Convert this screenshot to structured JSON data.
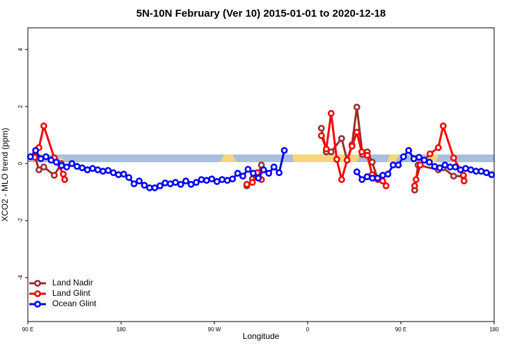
{
  "chart_data": {
    "type": "line",
    "title": "5N-10N February (Ver 10)   2015-01-01 to 2020-12-18",
    "x_label": "Longitude",
    "y_label": "XCO2 - MLO trend (ppm)",
    "xlim": [
      90,
      540
    ],
    "ylim": [
      -5.54,
      4.76
    ],
    "xticks": [
      {
        "value": 90,
        "label": "90 E"
      },
      180,
      {
        "value": 270,
        "label": "90 W"
      },
      {
        "value": 360,
        "label": "0"
      },
      {
        "value": 450,
        "label": "90 E"
      },
      {
        "value": 540,
        "label": "180"
      }
    ],
    "yticks": [
      -4,
      -2,
      0,
      2,
      4
    ],
    "legend": "bottom-left",
    "series": [
      {
        "name": "Land Nadir",
        "color": "#9b2d2d",
        "x": [
          96.7,
          100.7,
          105.4,
          115.5,
          122.3,
          210,
          301.3,
          306.7,
          312.8,
          315.4,
          345,
          373.3,
          378.0,
          382.7,
          392.8,
          398.1,
          402.8,
          407.5,
          412.9,
          417.6,
          422.3,
          427.7,
          445,
          463.3,
          466.6,
          486.1,
          490.8,
          500.9,
          510.3
        ],
        "values": [
          0.27,
          -0.22,
          -0.12,
          -0.41,
          0,
          null,
          -0.78,
          -0.54,
          -0.34,
          -0.05,
          null,
          1.24,
          0.41,
          0.41,
          0.88,
          0.12,
          0.66,
          1.98,
          0.32,
          0.41,
          0.05,
          -0.56,
          null,
          -0.93,
          -0.05,
          -0.22,
          -0.15,
          -0.44,
          -0.44
        ]
      },
      {
        "name": "Land Glint",
        "color": "#ff0000",
        "x": [
          96.7,
          100.7,
          105.4,
          115.5,
          124.2,
          125.6,
          210,
          301.3,
          306.7,
          311.4,
          315.4,
          345,
          373.3,
          378.0,
          382.7,
          388.1,
          392.8,
          398.1,
          402.8,
          407.5,
          412.2,
          417.6,
          422.3,
          427.7,
          432.4,
          435.7,
          450,
          463.3,
          464.6,
          468.7,
          478.1,
          486.1,
          490.8,
          500.9,
          510.3,
          511.0
        ],
        "values": [
          0.22,
          0.56,
          1.32,
          0.2,
          -0.37,
          -0.56,
          null,
          -0.73,
          -0.66,
          -0.32,
          -0.56,
          null,
          0.98,
          0.51,
          1.76,
          0.15,
          -0.56,
          0.12,
          0.61,
          1.1,
          0.41,
          0.29,
          -0.39,
          -0.56,
          -0.61,
          -0.78,
          null,
          -0.78,
          -0.56,
          -0.05,
          0.34,
          0.56,
          1.32,
          0.2,
          -0.41,
          -0.61
        ]
      },
      {
        "name": "Ocean Glint",
        "color": "#0000ff",
        "x": [
          92.5,
          97.5,
          102.5,
          107.5,
          112.5,
          117.5,
          122.5,
          127.5,
          132.5,
          137.5,
          142.5,
          147.5,
          152.5,
          157.5,
          162.5,
          167.5,
          172.5,
          177.5,
          182.5,
          187.5,
          192.5,
          197.5,
          202.5,
          207.5,
          212.5,
          217.5,
          222.5,
          227.5,
          232.5,
          237.5,
          242.5,
          247.5,
          252.5,
          257.5,
          262.5,
          267.5,
          272.5,
          277.5,
          282.5,
          287.5,
          292.5,
          297.5,
          302.5,
          307.5,
          312.5,
          317.5,
          322.5,
          327.5,
          332.5,
          337.5,
          400,
          407.5,
          412.5,
          417.5,
          422.5,
          427.5,
          432.5,
          437.5,
          442.5,
          447.5,
          452.5,
          457.5,
          462.5,
          467.5,
          472.5,
          477.5,
          482.5,
          487.5,
          492.5,
          497.5,
          502.5,
          507.5,
          512.5,
          517.5,
          522.5,
          527.5,
          532.5,
          537.5
        ],
        "values": [
          0.24,
          0.46,
          0.17,
          0.24,
          0.12,
          0.05,
          -0.07,
          -0.12,
          0,
          -0.1,
          -0.15,
          -0.22,
          -0.17,
          -0.22,
          -0.27,
          -0.24,
          -0.32,
          -0.39,
          -0.37,
          -0.49,
          -0.71,
          -0.61,
          -0.76,
          -0.85,
          -0.85,
          -0.78,
          -0.68,
          -0.71,
          -0.66,
          -0.73,
          -0.61,
          -0.73,
          -0.66,
          -0.56,
          -0.59,
          -0.54,
          -0.63,
          -0.56,
          -0.59,
          -0.54,
          -0.34,
          -0.44,
          -0.2,
          -0.34,
          -0.51,
          -0.22,
          -0.34,
          -0.12,
          -0.32,
          0.46,
          null,
          -0.29,
          -0.56,
          -0.46,
          -0.51,
          -0.51,
          -0.41,
          -0.37,
          -0.05,
          -0.05,
          0.24,
          0.46,
          0.17,
          0.22,
          0.12,
          0.05,
          -0.1,
          -0.15,
          -0.05,
          -0.12,
          -0.12,
          -0.22,
          -0.17,
          -0.22,
          -0.27,
          -0.27,
          -0.32,
          -0.39
        ]
      }
    ]
  }
}
